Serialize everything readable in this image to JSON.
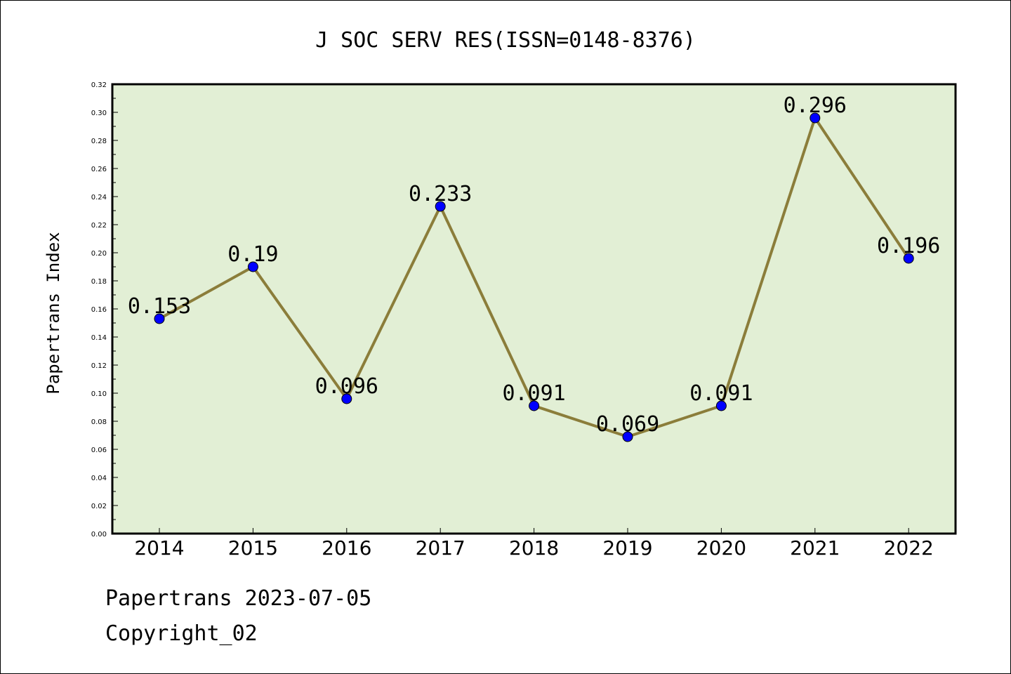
{
  "chart_data": {
    "type": "line",
    "title": "J SOC SERV RES(ISSN=0148-8376)",
    "xlabel": "",
    "ylabel": "Papertrans Index",
    "categories": [
      "2014",
      "2015",
      "2016",
      "2017",
      "2018",
      "2019",
      "2020",
      "2021",
      "2022"
    ],
    "series": [
      {
        "values": [
          0.153,
          0.19,
          0.096,
          0.233,
          0.091,
          0.069,
          0.091,
          0.296,
          0.196
        ],
        "labels": [
          "0.153",
          "0.19",
          "0.096",
          "0.233",
          "0.091",
          "0.069",
          "0.091",
          "0.296",
          "0.196"
        ]
      }
    ],
    "ylim": [
      0,
      0.32
    ],
    "yticks": [
      0.0,
      0.02,
      0.04,
      0.06,
      0.08,
      0.1,
      0.12,
      0.14,
      0.16,
      0.18,
      0.2,
      0.22,
      0.24,
      0.26,
      0.28,
      0.3,
      0.32
    ],
    "ytick_labels": [
      "0.00",
      "0.02",
      "0.04",
      "0.06",
      "0.08",
      "0.10",
      "0.12",
      "0.14",
      "0.16",
      "0.18",
      "0.20",
      "0.22",
      "0.24",
      "0.26",
      "0.28",
      "0.30",
      "0.32"
    ],
    "grid": false,
    "colors": {
      "plot_background": "#e2efd5",
      "line": "#8b7d3a",
      "marker": "#0000ff"
    }
  },
  "footer": {
    "source": "Papertrans 2023-07-05",
    "copyright": "Copyright_02"
  }
}
